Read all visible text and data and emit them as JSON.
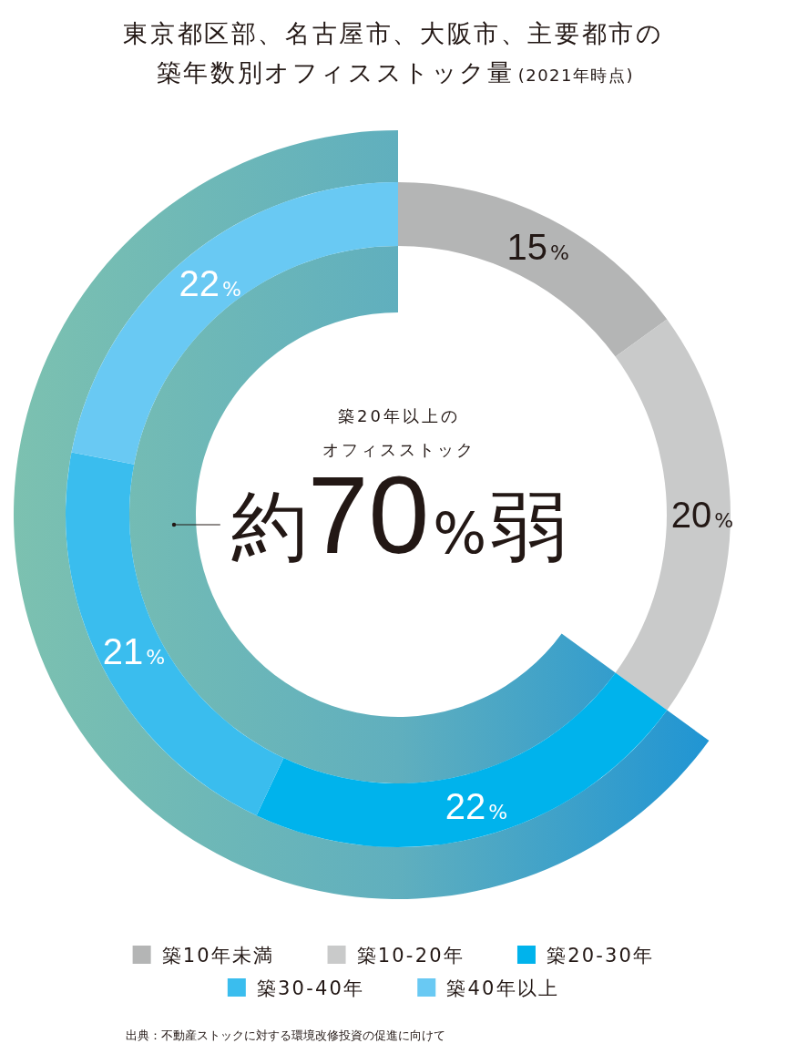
{
  "chart_data": {
    "type": "donut",
    "title": "東京都区部、名古屋市、大阪市、主要都市の築年数別オフィスストック量(2021年時点)",
    "categories": [
      "築10年未満",
      "築10-20年",
      "築20-30年",
      "築30-40年",
      "築40年以上"
    ],
    "values": [
      15,
      20,
      22,
      21,
      22
    ],
    "colors": [
      "#b4b5b5",
      "#c9caca",
      "#00b3ec",
      "#3abdee",
      "#69c9f3"
    ],
    "value_labels": [
      "15%",
      "20%",
      "22%",
      "21%",
      "22%"
    ],
    "legend": "bottom",
    "annotations": [
      "築20年以上の",
      "オフィスストック",
      "約70%弱",
      "出典：不動産ストックに対する環境改修投資の促進に向けて"
    ]
  }
}
